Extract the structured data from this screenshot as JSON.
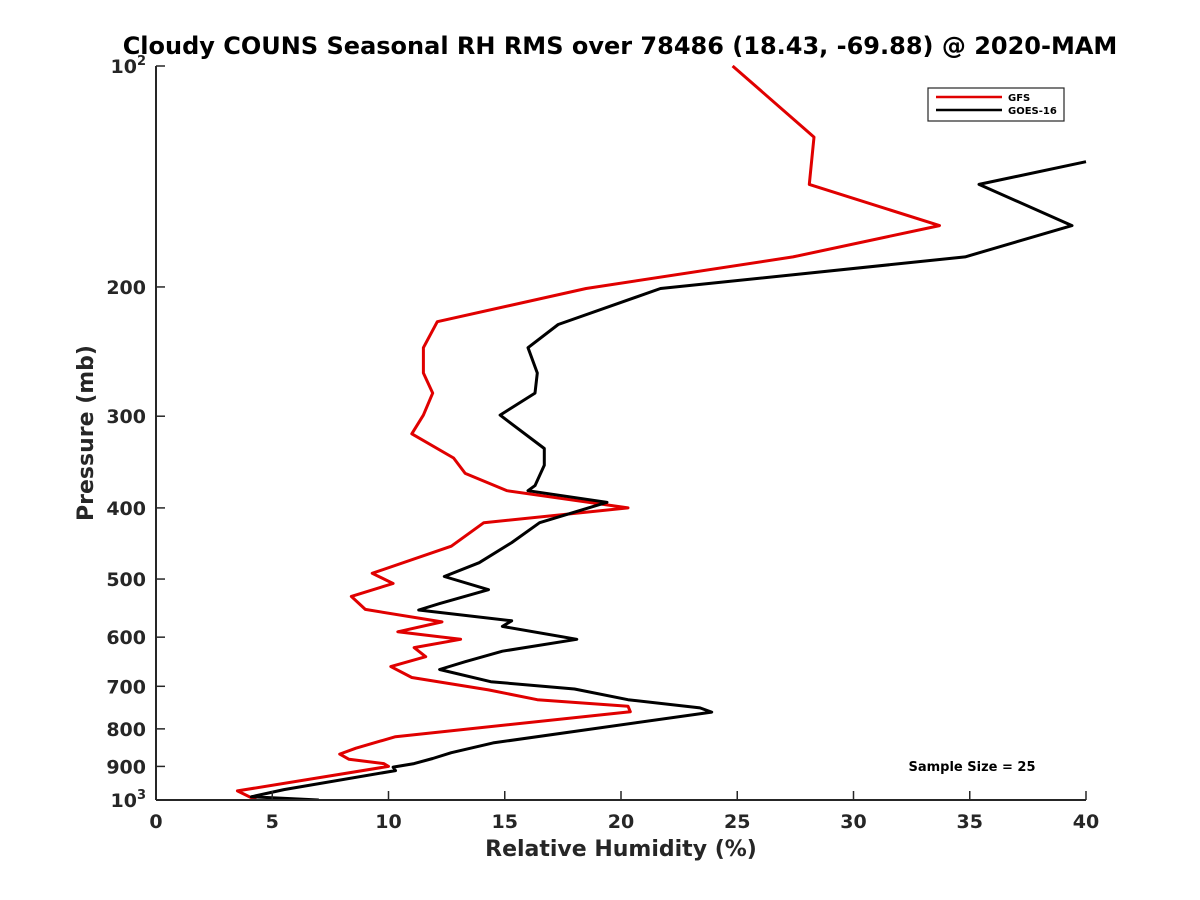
{
  "chart_data": {
    "type": "line",
    "title": "Cloudy COUNS Seasonal RH RMS over 78486 (18.43, -69.88) @ 2020-MAM",
    "xlabel": "Relative Humidity (%)",
    "ylabel": "Pressure (mb)",
    "xlim": [
      0,
      40
    ],
    "ylim": [
      100,
      1000
    ],
    "yscale": "log",
    "y_reversed": true,
    "x_ticks": [
      "0",
      "5",
      "10",
      "15",
      "20",
      "25",
      "30",
      "35",
      "40"
    ],
    "y_ticks": [
      {
        "value": 100,
        "label": "10",
        "sup": "2"
      },
      {
        "value": 200,
        "label": "200",
        "sup": ""
      },
      {
        "value": 300,
        "label": "300",
        "sup": ""
      },
      {
        "value": 400,
        "label": "400",
        "sup": ""
      },
      {
        "value": 500,
        "label": "500",
        "sup": ""
      },
      {
        "value": 600,
        "label": "600",
        "sup": ""
      },
      {
        "value": 700,
        "label": "700",
        "sup": ""
      },
      {
        "value": 800,
        "label": "800",
        "sup": ""
      },
      {
        "value": 900,
        "label": "900",
        "sup": ""
      },
      {
        "value": 1000,
        "label": "10",
        "sup": "3"
      }
    ],
    "legend_position": "top-right",
    "annotation": "Sample Size = 25",
    "series": [
      {
        "name": "GFS",
        "color": "#e00000",
        "x": [
          24.8,
          28.3,
          28.1,
          33.7,
          27.4,
          18.5,
          12.1,
          11.5,
          11.5,
          11.9,
          11.5,
          11.0,
          12.8,
          13.3,
          15.1,
          20.3,
          14.1,
          12.7,
          9.3,
          10.2,
          8.4,
          9.0,
          12.3,
          10.4,
          13.1,
          11.1,
          11.6,
          10.1,
          11.0,
          14.3,
          16.4,
          20.3,
          20.4,
          10.3,
          8.6,
          7.9,
          8.3,
          9.8,
          10.0,
          3.5,
          4.3
        ],
        "y": [
          100,
          125,
          145,
          165,
          182,
          201,
          223,
          242,
          262,
          279,
          299,
          317,
          342,
          359,
          379,
          400,
          419,
          451,
          491,
          507,
          528,
          550,
          572,
          590,
          604,
          620,
          638,
          658,
          681,
          708,
          730,
          745,
          758,
          820,
          850,
          866,
          880,
          892,
          900,
          972,
          1000
        ]
      },
      {
        "name": "GOES-16",
        "color": "#000000",
        "x": [
          40.0,
          35.4,
          39.4,
          34.8,
          21.7,
          17.3,
          16.0,
          16.4,
          16.3,
          14.8,
          16.7,
          16.7,
          16.3,
          16.0,
          19.4,
          16.5,
          15.3,
          13.9,
          12.4,
          14.3,
          12.2,
          11.3,
          15.3,
          14.9,
          18.1,
          14.9,
          13.3,
          12.2,
          14.4,
          18.0,
          20.3,
          23.4,
          23.9,
          14.5,
          12.7,
          11.9,
          11.1,
          10.2,
          10.3,
          5.5,
          4.1,
          7.0
        ],
        "y": [
          135,
          145,
          165,
          182,
          201,
          225,
          242,
          262,
          279,
          299,
          332,
          350,
          373,
          379,
          393,
          419,
          446,
          475,
          496,
          517,
          540,
          551,
          570,
          580,
          604,
          627,
          648,
          664,
          690,
          706,
          730,
          749,
          759,
          836,
          862,
          878,
          892,
          902,
          912,
          968,
          990,
          1000
        ]
      }
    ]
  }
}
